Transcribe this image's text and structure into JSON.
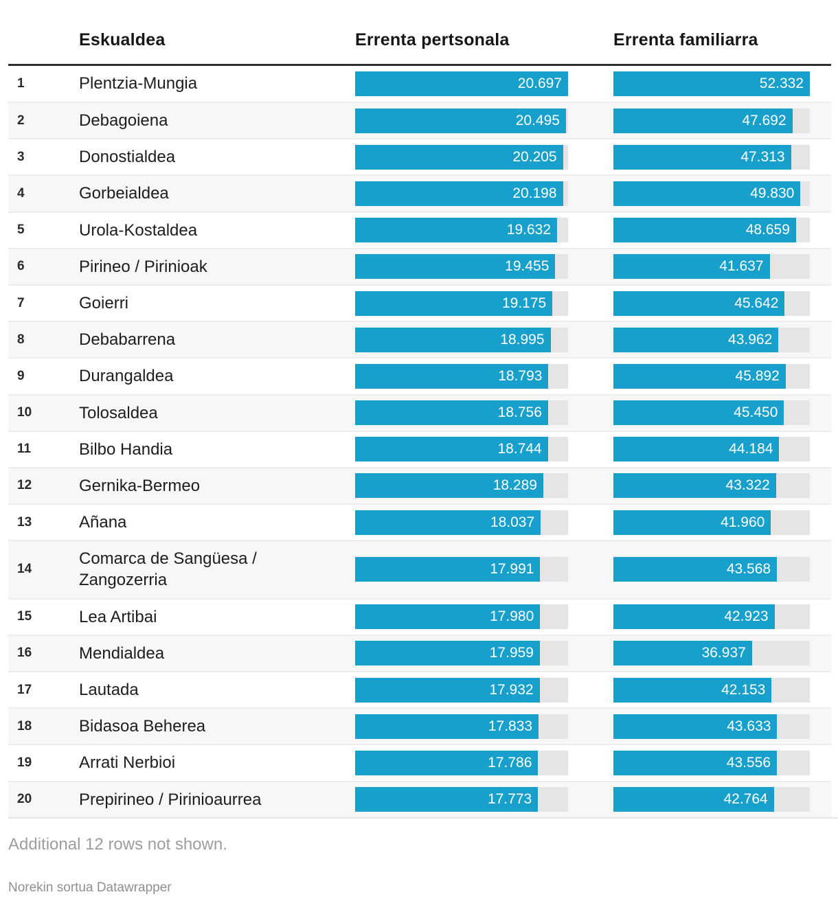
{
  "colors": {
    "bar": "#18a0cc",
    "track": "#e5e5e5",
    "row_alt": "#f7f7f7",
    "header_rule": "#2e2e2e"
  },
  "table": {
    "header": {
      "rank": "",
      "region": "Eskualdea",
      "personal": "Errenta pertsonala",
      "family": "Errenta familiarra"
    },
    "rows": [
      {
        "rank": "1",
        "region": "Plentzia-Mungia",
        "personal": 20697,
        "personal_label": "20.697",
        "family": 52332,
        "family_label": "52.332"
      },
      {
        "rank": "2",
        "region": "Debagoiena",
        "personal": 20495,
        "personal_label": "20.495",
        "family": 47692,
        "family_label": "47.692"
      },
      {
        "rank": "3",
        "region": "Donostialdea",
        "personal": 20205,
        "personal_label": "20.205",
        "family": 47313,
        "family_label": "47.313"
      },
      {
        "rank": "4",
        "region": "Gorbeialdea",
        "personal": 20198,
        "personal_label": "20.198",
        "family": 49830,
        "family_label": "49.830"
      },
      {
        "rank": "5",
        "region": "Urola-Kostaldea",
        "personal": 19632,
        "personal_label": "19.632",
        "family": 48659,
        "family_label": "48.659"
      },
      {
        "rank": "6",
        "region": "Pirineo / Pirinioak",
        "personal": 19455,
        "personal_label": "19.455",
        "family": 41637,
        "family_label": "41.637"
      },
      {
        "rank": "7",
        "region": "Goierri",
        "personal": 19175,
        "personal_label": "19.175",
        "family": 45642,
        "family_label": "45.642"
      },
      {
        "rank": "8",
        "region": "Debabarrena",
        "personal": 18995,
        "personal_label": "18.995",
        "family": 43962,
        "family_label": "43.962"
      },
      {
        "rank": "9",
        "region": "Durangaldea",
        "personal": 18793,
        "personal_label": "18.793",
        "family": 45892,
        "family_label": "45.892"
      },
      {
        "rank": "10",
        "region": "Tolosaldea",
        "personal": 18756,
        "personal_label": "18.756",
        "family": 45450,
        "family_label": "45.450"
      },
      {
        "rank": "11",
        "region": "Bilbo Handia",
        "personal": 18744,
        "personal_label": "18.744",
        "family": 44184,
        "family_label": "44.184"
      },
      {
        "rank": "12",
        "region": "Gernika-Bermeo",
        "personal": 18289,
        "personal_label": "18.289",
        "family": 43322,
        "family_label": "43.322"
      },
      {
        "rank": "13",
        "region": "Añana",
        "personal": 18037,
        "personal_label": "18.037",
        "family": 41960,
        "family_label": "41.960"
      },
      {
        "rank": "14",
        "region": "Comarca de Sangüesa / Zangozerria",
        "personal": 17991,
        "personal_label": "17.991",
        "family": 43568,
        "family_label": "43.568"
      },
      {
        "rank": "15",
        "region": "Lea Artibai",
        "personal": 17980,
        "personal_label": "17.980",
        "family": 42923,
        "family_label": "42.923"
      },
      {
        "rank": "16",
        "region": "Mendialdea",
        "personal": 17959,
        "personal_label": "17.959",
        "family": 36937,
        "family_label": "36.937"
      },
      {
        "rank": "17",
        "region": "Lautada",
        "personal": 17932,
        "personal_label": "17.932",
        "family": 42153,
        "family_label": "42.153"
      },
      {
        "rank": "18",
        "region": "Bidasoa Beherea",
        "personal": 17833,
        "personal_label": "17.833",
        "family": 43633,
        "family_label": "43.633"
      },
      {
        "rank": "19",
        "region": "Arrati Nerbioi",
        "personal": 17786,
        "personal_label": "17.786",
        "family": 43556,
        "family_label": "43.556"
      },
      {
        "rank": "20",
        "region": "Prepirineo / Pirinioaurrea",
        "personal": 17773,
        "personal_label": "17.773",
        "family": 42764,
        "family_label": "42.764"
      }
    ]
  },
  "footer": {
    "note": "Additional 12 rows not shown.",
    "attribution": "Norekin sortua Datawrapper"
  },
  "chart_data": {
    "type": "table",
    "title": "",
    "columns": [
      "rank",
      "Eskualdea",
      "Errenta pertsonala",
      "Errenta familiarra"
    ],
    "bar_columns": [
      "Errenta pertsonala",
      "Errenta familiarra"
    ],
    "bar_axis": {
      "personal": [
        0,
        20697
      ],
      "family": [
        0,
        52332
      ]
    },
    "rows": [
      [
        1,
        "Plentzia-Mungia",
        20697,
        52332
      ],
      [
        2,
        "Debagoiena",
        20495,
        47692
      ],
      [
        3,
        "Donostialdea",
        20205,
        47313
      ],
      [
        4,
        "Gorbeialdea",
        20198,
        49830
      ],
      [
        5,
        "Urola-Kostaldea",
        19632,
        48659
      ],
      [
        6,
        "Pirineo / Pirinioak",
        19455,
        41637
      ],
      [
        7,
        "Goierri",
        19175,
        45642
      ],
      [
        8,
        "Debabarrena",
        18995,
        43962
      ],
      [
        9,
        "Durangaldea",
        18793,
        45892
      ],
      [
        10,
        "Tolosaldea",
        18756,
        45450
      ],
      [
        11,
        "Bilbo Handia",
        18744,
        44184
      ],
      [
        12,
        "Gernika-Bermeo",
        18289,
        43322
      ],
      [
        13,
        "Añana",
        18037,
        41960
      ],
      [
        14,
        "Comarca de Sangüesa / Zangozerria",
        17991,
        43568
      ],
      [
        15,
        "Lea Artibai",
        17980,
        42923
      ],
      [
        16,
        "Mendialdea",
        17959,
        36937
      ],
      [
        17,
        "Lautada",
        17932,
        42153
      ],
      [
        18,
        "Bidasoa Beherea",
        17833,
        43633
      ],
      [
        19,
        "Arrati Nerbioi",
        17786,
        43556
      ],
      [
        20,
        "Prepirineo / Pirinioaurrea",
        17773,
        42764
      ]
    ],
    "note": "Additional 12 rows not shown.",
    "attribution": "Norekin sortua Datawrapper"
  }
}
